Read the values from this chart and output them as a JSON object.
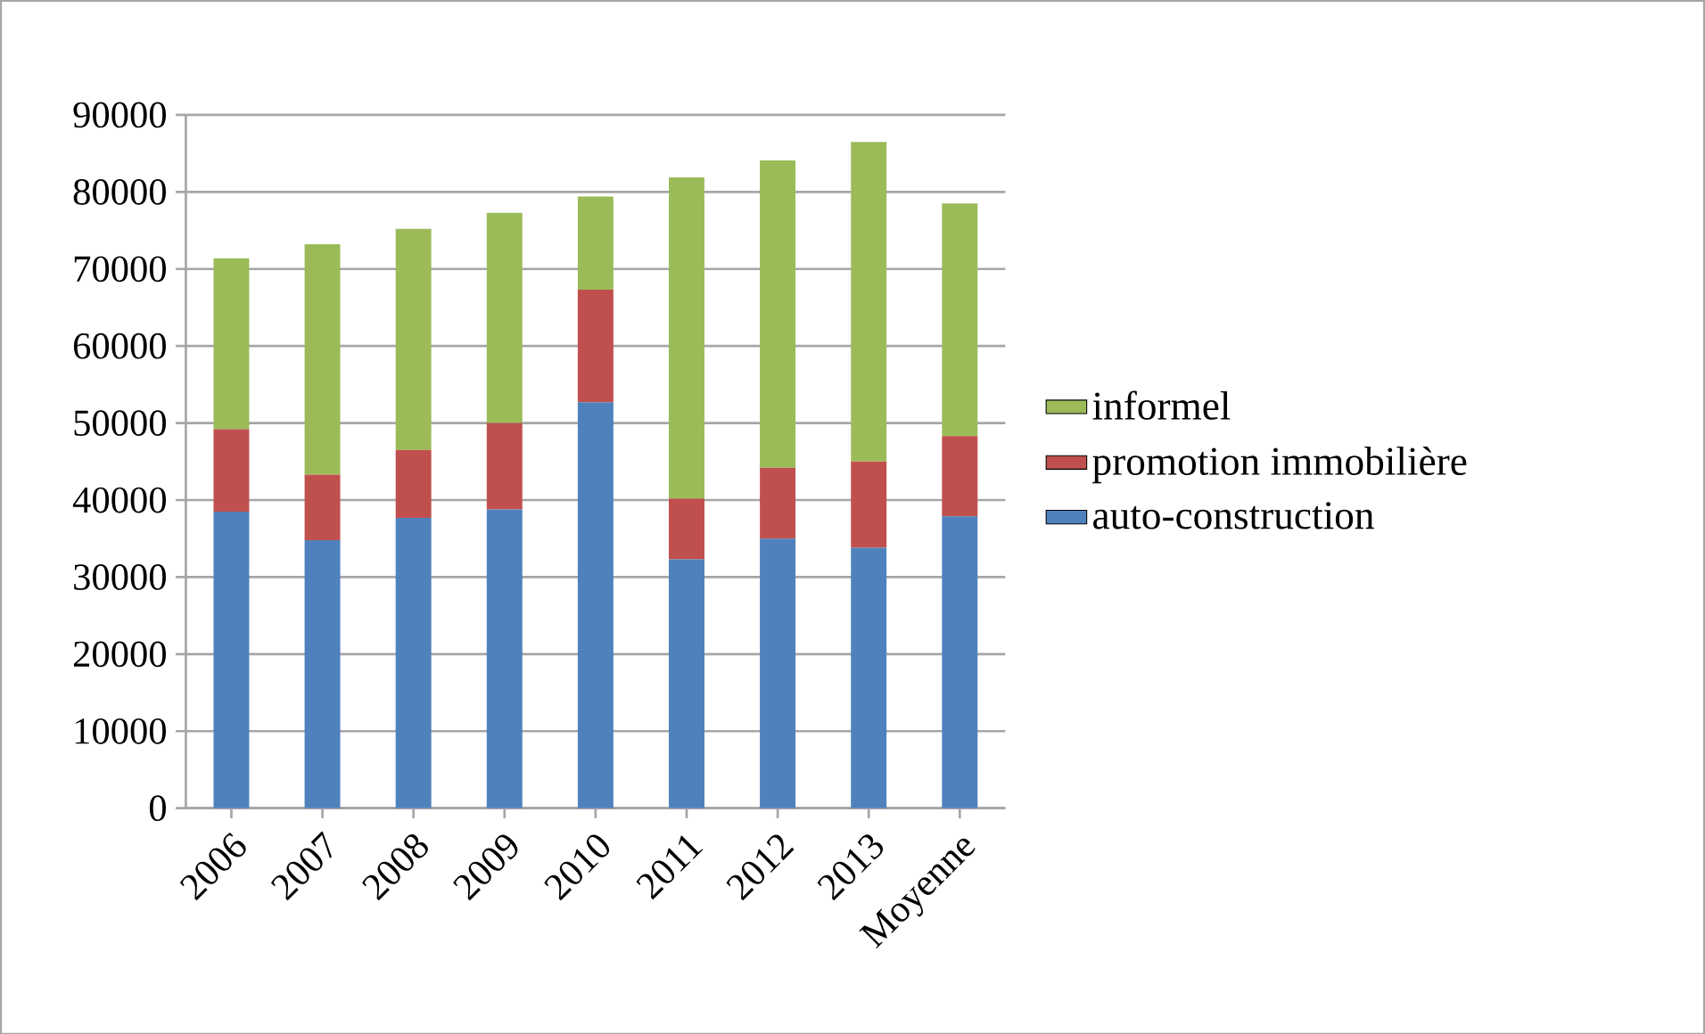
{
  "chart_data": {
    "type": "bar",
    "stacked": true,
    "categories": [
      "2006",
      "2007",
      "2008",
      "2009",
      "2010",
      "2011",
      "2012",
      "2013",
      "Moyenne"
    ],
    "series": [
      {
        "name": "auto-construction",
        "color": "#4f81bd",
        "values": [
          38500,
          34800,
          37700,
          38800,
          52700,
          32300,
          35000,
          33800,
          37900
        ]
      },
      {
        "name": "promotion immobilière",
        "color": "#c0504d",
        "values": [
          10700,
          8500,
          8800,
          11200,
          14600,
          7900,
          9200,
          11200,
          10400
        ]
      },
      {
        "name": "informel",
        "color": "#9bbb59",
        "values": [
          22200,
          29900,
          28700,
          27300,
          12100,
          41700,
          39900,
          41500,
          30200
        ]
      }
    ],
    "ylim": [
      0,
      90000
    ],
    "yticks": [
      0,
      10000,
      20000,
      30000,
      40000,
      50000,
      60000,
      70000,
      80000,
      90000
    ],
    "grid": "y",
    "legend": "right"
  }
}
